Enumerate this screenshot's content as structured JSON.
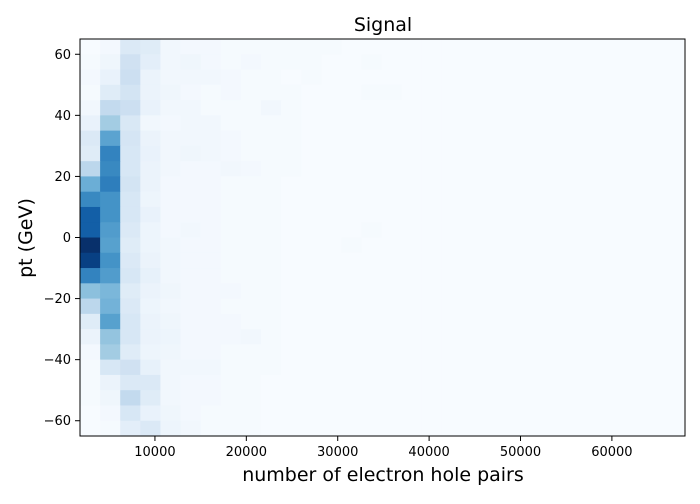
{
  "chart_data": {
    "type": "heatmap",
    "title": "Signal",
    "xlabel": "number of electron hole pairs",
    "ylabel": "pt (GeV)",
    "xlim": [
      1800,
      68000
    ],
    "ylim": [
      -65,
      65
    ],
    "x_ticks": [
      {
        "value": 10000,
        "label": "10000"
      },
      {
        "value": 20000,
        "label": "20000"
      },
      {
        "value": 30000,
        "label": "30000"
      },
      {
        "value": 40000,
        "label": "40000"
      },
      {
        "value": 50000,
        "label": "50000"
      },
      {
        "value": 60000,
        "label": "60000"
      }
    ],
    "y_ticks": [
      {
        "value": 60,
        "label": "60"
      },
      {
        "value": 40,
        "label": "40"
      },
      {
        "value": 20,
        "label": "20"
      },
      {
        "value": 0,
        "label": "0"
      },
      {
        "value": -20,
        "label": "−20"
      },
      {
        "value": -40,
        "label": "−40"
      },
      {
        "value": -60,
        "label": "−60"
      }
    ],
    "colormap": "Blues",
    "x_bin_edges": [
      1800,
      4000,
      6200,
      8400,
      10600,
      12800,
      15000,
      17200,
      19400,
      21600,
      23800,
      26000,
      28200,
      30400,
      32600,
      34800,
      37000,
      39200,
      41400,
      43600,
      45800,
      48000,
      50200,
      52400,
      54600,
      56800,
      59000,
      61200,
      63400,
      65600,
      67800
    ],
    "y_bin_edges": [
      65,
      60,
      55,
      50,
      45,
      40,
      35,
      30,
      25,
      20,
      15,
      10,
      5,
      0,
      -5,
      -10,
      -15,
      -20,
      -25,
      -30,
      -35,
      -40,
      -45,
      -50,
      -55,
      -60,
      -65
    ],
    "z_row_order": "top_to_bottom",
    "z": [
      [
        0.0,
        0.02,
        0.14,
        0.12,
        0.03,
        0.02,
        0.02,
        0.01,
        0.01,
        0.01,
        0.01,
        0.01,
        0.01,
        0.0,
        0.0,
        0.0,
        0.0,
        0.0,
        0.0,
        0.0,
        0.0,
        0.0,
        0.0,
        0.0,
        0.0,
        0.0,
        0.0,
        0.0,
        0.0,
        0.0
      ],
      [
        0.01,
        0.04,
        0.2,
        0.1,
        0.03,
        0.04,
        0.02,
        0.01,
        0.02,
        0.01,
        0.01,
        0.01,
        0.0,
        0.0,
        0.01,
        0.0,
        0.0,
        0.0,
        0.0,
        0.0,
        0.0,
        0.0,
        0.0,
        0.0,
        0.0,
        0.0,
        0.0,
        0.0,
        0.0,
        0.0
      ],
      [
        0.02,
        0.07,
        0.22,
        0.06,
        0.03,
        0.03,
        0.03,
        0.02,
        0.01,
        0.01,
        0.0,
        0.01,
        0.0,
        0.0,
        0.0,
        0.0,
        0.0,
        0.0,
        0.0,
        0.0,
        0.0,
        0.0,
        0.0,
        0.0,
        0.0,
        0.0,
        0.0,
        0.0,
        0.0,
        0.0
      ],
      [
        0.01,
        0.12,
        0.18,
        0.06,
        0.04,
        0.02,
        0.01,
        0.02,
        0.01,
        0.01,
        0.01,
        0.0,
        0.0,
        0.0,
        0.01,
        0.01,
        0.0,
        0.0,
        0.0,
        0.0,
        0.0,
        0.0,
        0.0,
        0.0,
        0.0,
        0.0,
        0.0,
        0.0,
        0.0,
        0.0
      ],
      [
        0.03,
        0.26,
        0.22,
        0.07,
        0.03,
        0.03,
        0.01,
        0.01,
        0.01,
        0.03,
        0.01,
        0.0,
        0.0,
        0.0,
        0.0,
        0.0,
        0.0,
        0.0,
        0.0,
        0.0,
        0.0,
        0.0,
        0.0,
        0.0,
        0.0,
        0.0,
        0.0,
        0.0,
        0.0,
        0.0
      ],
      [
        0.07,
        0.36,
        0.15,
        0.03,
        0.02,
        0.03,
        0.03,
        0.01,
        0.01,
        0.01,
        0.01,
        0.0,
        0.0,
        0.0,
        0.0,
        0.0,
        0.0,
        0.0,
        0.0,
        0.0,
        0.0,
        0.0,
        0.0,
        0.0,
        0.0,
        0.0,
        0.0,
        0.0,
        0.0,
        0.0
      ],
      [
        0.14,
        0.55,
        0.17,
        0.06,
        0.03,
        0.03,
        0.03,
        0.02,
        0.01,
        0.01,
        0.01,
        0.0,
        0.0,
        0.0,
        0.0,
        0.0,
        0.0,
        0.0,
        0.0,
        0.0,
        0.0,
        0.0,
        0.0,
        0.0,
        0.0,
        0.0,
        0.0,
        0.0,
        0.0,
        0.0
      ],
      [
        0.12,
        0.68,
        0.16,
        0.07,
        0.03,
        0.04,
        0.03,
        0.02,
        0.01,
        0.01,
        0.01,
        0.0,
        0.0,
        0.0,
        0.0,
        0.0,
        0.0,
        0.0,
        0.0,
        0.0,
        0.0,
        0.0,
        0.0,
        0.0,
        0.0,
        0.0,
        0.0,
        0.0,
        0.0,
        0.0
      ],
      [
        0.28,
        0.66,
        0.16,
        0.06,
        0.03,
        0.02,
        0.02,
        0.03,
        0.02,
        0.01,
        0.01,
        0.0,
        0.0,
        0.0,
        0.0,
        0.0,
        0.0,
        0.0,
        0.0,
        0.0,
        0.0,
        0.0,
        0.0,
        0.0,
        0.0,
        0.0,
        0.0,
        0.0,
        0.0,
        0.0
      ],
      [
        0.5,
        0.7,
        0.18,
        0.06,
        0.02,
        0.02,
        0.02,
        0.01,
        0.01,
        0.01,
        0.0,
        0.0,
        0.0,
        0.0,
        0.0,
        0.0,
        0.0,
        0.0,
        0.0,
        0.0,
        0.0,
        0.0,
        0.0,
        0.0,
        0.0,
        0.0,
        0.0,
        0.0,
        0.0,
        0.0
      ],
      [
        0.66,
        0.62,
        0.16,
        0.05,
        0.02,
        0.02,
        0.02,
        0.01,
        0.01,
        0.01,
        0.0,
        0.0,
        0.0,
        0.0,
        0.0,
        0.0,
        0.0,
        0.0,
        0.0,
        0.0,
        0.0,
        0.0,
        0.0,
        0.0,
        0.0,
        0.0,
        0.0,
        0.0,
        0.0,
        0.0
      ],
      [
        0.82,
        0.62,
        0.16,
        0.07,
        0.02,
        0.02,
        0.02,
        0.01,
        0.01,
        0.01,
        0.0,
        0.0,
        0.0,
        0.0,
        0.0,
        0.0,
        0.0,
        0.0,
        0.0,
        0.0,
        0.0,
        0.0,
        0.0,
        0.0,
        0.0,
        0.0,
        0.0,
        0.0,
        0.0,
        0.0
      ],
      [
        0.82,
        0.58,
        0.14,
        0.05,
        0.02,
        0.03,
        0.02,
        0.01,
        0.01,
        0.01,
        0.0,
        0.0,
        0.0,
        0.0,
        0.01,
        0.0,
        0.0,
        0.0,
        0.0,
        0.0,
        0.0,
        0.0,
        0.0,
        0.0,
        0.0,
        0.0,
        0.0,
        0.0,
        0.0,
        0.0
      ],
      [
        1.0,
        0.56,
        0.12,
        0.05,
        0.03,
        0.02,
        0.02,
        0.01,
        0.01,
        0.01,
        0.0,
        0.0,
        0.0,
        0.01,
        0.0,
        0.0,
        0.0,
        0.0,
        0.0,
        0.0,
        0.0,
        0.0,
        0.0,
        0.0,
        0.0,
        0.0,
        0.0,
        0.0,
        0.0,
        0.0
      ],
      [
        0.94,
        0.62,
        0.14,
        0.06,
        0.03,
        0.02,
        0.02,
        0.01,
        0.01,
        0.01,
        0.0,
        0.0,
        0.0,
        0.0,
        0.0,
        0.0,
        0.0,
        0.0,
        0.0,
        0.0,
        0.0,
        0.0,
        0.0,
        0.0,
        0.0,
        0.0,
        0.0,
        0.0,
        0.0,
        0.0
      ],
      [
        0.68,
        0.58,
        0.16,
        0.08,
        0.03,
        0.02,
        0.02,
        0.01,
        0.01,
        0.01,
        0.0,
        0.0,
        0.0,
        0.0,
        0.0,
        0.0,
        0.0,
        0.0,
        0.0,
        0.0,
        0.0,
        0.0,
        0.0,
        0.0,
        0.0,
        0.0,
        0.0,
        0.0,
        0.0,
        0.0
      ],
      [
        0.42,
        0.46,
        0.12,
        0.06,
        0.04,
        0.02,
        0.02,
        0.02,
        0.01,
        0.01,
        0.0,
        0.0,
        0.0,
        0.0,
        0.0,
        0.0,
        0.0,
        0.0,
        0.0,
        0.0,
        0.0,
        0.0,
        0.0,
        0.0,
        0.0,
        0.0,
        0.0,
        0.0,
        0.0,
        0.0
      ],
      [
        0.28,
        0.48,
        0.14,
        0.05,
        0.03,
        0.02,
        0.02,
        0.01,
        0.01,
        0.01,
        0.0,
        0.0,
        0.0,
        0.0,
        0.0,
        0.0,
        0.0,
        0.0,
        0.0,
        0.0,
        0.0,
        0.0,
        0.0,
        0.0,
        0.0,
        0.0,
        0.0,
        0.0,
        0.0,
        0.0
      ],
      [
        0.12,
        0.56,
        0.16,
        0.06,
        0.04,
        0.02,
        0.02,
        0.02,
        0.01,
        0.01,
        0.0,
        0.0,
        0.0,
        0.0,
        0.0,
        0.0,
        0.0,
        0.0,
        0.0,
        0.0,
        0.0,
        0.0,
        0.0,
        0.0,
        0.0,
        0.0,
        0.0,
        0.0,
        0.0,
        0.0
      ],
      [
        0.06,
        0.4,
        0.16,
        0.06,
        0.05,
        0.02,
        0.02,
        0.02,
        0.03,
        0.01,
        0.0,
        0.0,
        0.0,
        0.0,
        0.0,
        0.0,
        0.0,
        0.0,
        0.0,
        0.0,
        0.0,
        0.0,
        0.0,
        0.0,
        0.0,
        0.0,
        0.0,
        0.0,
        0.0,
        0.0
      ],
      [
        0.02,
        0.36,
        0.12,
        0.05,
        0.04,
        0.02,
        0.02,
        0.01,
        0.01,
        0.01,
        0.0,
        0.0,
        0.0,
        0.0,
        0.0,
        0.0,
        0.0,
        0.0,
        0.0,
        0.0,
        0.0,
        0.0,
        0.0,
        0.0,
        0.0,
        0.0,
        0.0,
        0.0,
        0.0,
        0.0
      ],
      [
        0.01,
        0.16,
        0.2,
        0.08,
        0.03,
        0.03,
        0.03,
        0.01,
        0.01,
        0.01,
        0.0,
        0.0,
        0.0,
        0.0,
        0.0,
        0.0,
        0.0,
        0.0,
        0.0,
        0.0,
        0.0,
        0.0,
        0.0,
        0.0,
        0.0,
        0.0,
        0.0,
        0.0,
        0.0,
        0.0
      ],
      [
        0.01,
        0.06,
        0.14,
        0.14,
        0.03,
        0.02,
        0.02,
        0.01,
        0.01,
        0.0,
        0.0,
        0.0,
        0.0,
        0.0,
        0.0,
        0.0,
        0.0,
        0.0,
        0.0,
        0.0,
        0.0,
        0.0,
        0.0,
        0.0,
        0.0,
        0.0,
        0.0,
        0.0,
        0.0,
        0.0
      ],
      [
        0.01,
        0.04,
        0.26,
        0.12,
        0.03,
        0.02,
        0.02,
        0.01,
        0.01,
        0.0,
        0.0,
        0.0,
        0.0,
        0.0,
        0.0,
        0.0,
        0.0,
        0.0,
        0.0,
        0.0,
        0.0,
        0.0,
        0.0,
        0.0,
        0.0,
        0.0,
        0.0,
        0.0,
        0.0,
        0.0
      ],
      [
        0.0,
        0.02,
        0.16,
        0.07,
        0.04,
        0.02,
        0.01,
        0.01,
        0.01,
        0.0,
        0.0,
        0.0,
        0.0,
        0.0,
        0.0,
        0.0,
        0.0,
        0.0,
        0.0,
        0.0,
        0.0,
        0.0,
        0.0,
        0.0,
        0.0,
        0.0,
        0.0,
        0.0,
        0.0,
        0.0
      ],
      [
        0.0,
        0.01,
        0.1,
        0.14,
        0.05,
        0.03,
        0.01,
        0.01,
        0.01,
        0.0,
        0.0,
        0.0,
        0.0,
        0.0,
        0.0,
        0.0,
        0.0,
        0.0,
        0.0,
        0.0,
        0.0,
        0.0,
        0.0,
        0.0,
        0.0,
        0.0,
        0.0,
        0.0,
        0.0,
        0.0
      ]
    ]
  }
}
